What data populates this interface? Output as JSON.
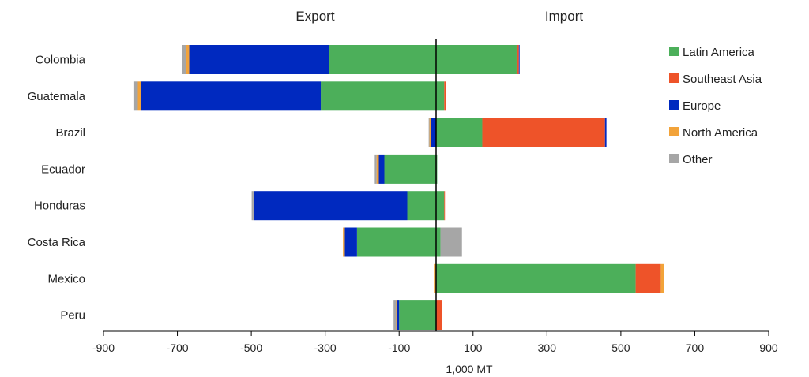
{
  "chart_data": {
    "type": "bar",
    "orientation": "horizontal",
    "stacked": true,
    "headers": {
      "left": "Export",
      "right": "Import"
    },
    "xlabel": "1,000 MT",
    "xlim": [
      -900,
      900
    ],
    "xticks": [
      -900,
      -700,
      -500,
      -300,
      -100,
      100,
      300,
      500,
      700,
      900
    ],
    "categories": [
      "Colombia",
      "Guatemala",
      "Brazil",
      "Ecuador",
      "Honduras",
      "Costa Rica",
      "Mexico",
      "Peru"
    ],
    "legend_position": "top-right",
    "series": [
      {
        "name": "Latin America",
        "color": "#4caf5a",
        "export": [
          -290,
          -312,
          0,
          -140,
          -78,
          -214,
          0,
          -100
        ],
        "import": [
          218,
          22,
          125,
          3,
          22,
          12,
          540,
          0
        ]
      },
      {
        "name": "Southeast Asia",
        "color": "#ee5329",
        "export": [
          0,
          0,
          0,
          0,
          0,
          0,
          0,
          0
        ],
        "import": [
          6,
          5,
          332,
          0,
          2,
          0,
          68,
          16
        ]
      },
      {
        "name": "Europe",
        "color": "#0029bf",
        "export": [
          -378,
          -487,
          -15,
          -15,
          -414,
          -33,
          0,
          -5
        ],
        "import": [
          2,
          0,
          4,
          0,
          0,
          0,
          0,
          0
        ]
      },
      {
        "name": "North America",
        "color": "#f2a33a",
        "export": [
          -8,
          -8,
          -3,
          -6,
          -2,
          -5,
          -6,
          -3
        ],
        "import": [
          0,
          0,
          0,
          0,
          0,
          0,
          8,
          0
        ]
      },
      {
        "name": "Other",
        "color": "#a6a6a6",
        "export": [
          -12,
          -12,
          -2,
          -5,
          -5,
          0,
          0,
          -7
        ],
        "import": [
          0,
          0,
          0,
          0,
          0,
          58,
          0,
          0
        ]
      }
    ]
  }
}
